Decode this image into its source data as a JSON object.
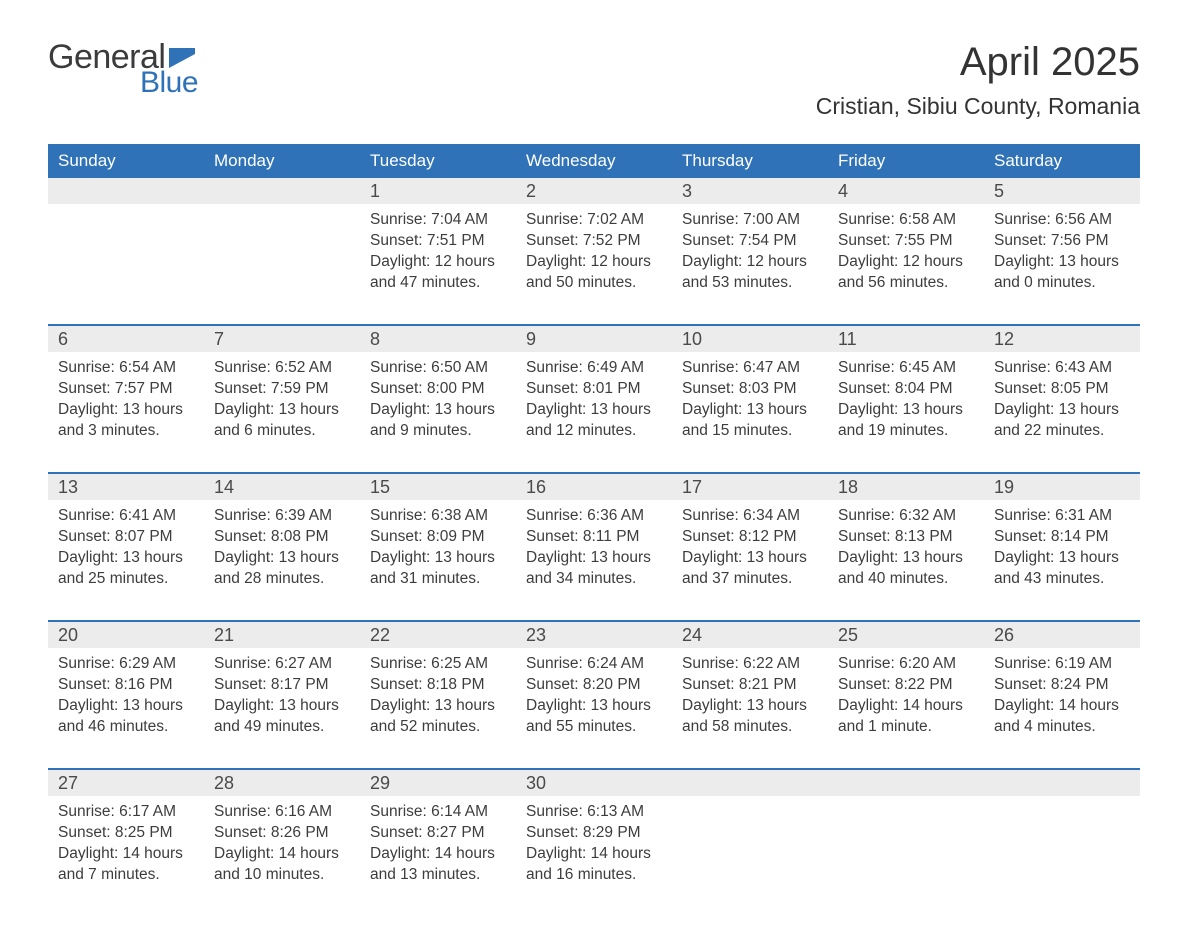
{
  "brand": {
    "line1": "General",
    "line2": "Blue",
    "flag_color": "#2f72b8",
    "text_color": "#3b3b3b",
    "blue_color": "#2f72b8"
  },
  "title": "April 2025",
  "location": "Cristian, Sibiu County, Romania",
  "colors": {
    "header_bg": "#2f72b8",
    "header_text": "#ffffff",
    "daynum_bg": "#ececec",
    "body_text": "#3d3d3d",
    "sep": "#2f72b8",
    "page_bg": "#ffffff"
  },
  "day_names": [
    "Sunday",
    "Monday",
    "Tuesday",
    "Wednesday",
    "Thursday",
    "Friday",
    "Saturday"
  ],
  "weeks": [
    [
      {
        "n": "",
        "sunrise": "",
        "sunset": "",
        "daylight": ""
      },
      {
        "n": "",
        "sunrise": "",
        "sunset": "",
        "daylight": ""
      },
      {
        "n": "1",
        "sunrise": "Sunrise: 7:04 AM",
        "sunset": "Sunset: 7:51 PM",
        "daylight": "Daylight: 12 hours and 47 minutes."
      },
      {
        "n": "2",
        "sunrise": "Sunrise: 7:02 AM",
        "sunset": "Sunset: 7:52 PM",
        "daylight": "Daylight: 12 hours and 50 minutes."
      },
      {
        "n": "3",
        "sunrise": "Sunrise: 7:00 AM",
        "sunset": "Sunset: 7:54 PM",
        "daylight": "Daylight: 12 hours and 53 minutes."
      },
      {
        "n": "4",
        "sunrise": "Sunrise: 6:58 AM",
        "sunset": "Sunset: 7:55 PM",
        "daylight": "Daylight: 12 hours and 56 minutes."
      },
      {
        "n": "5",
        "sunrise": "Sunrise: 6:56 AM",
        "sunset": "Sunset: 7:56 PM",
        "daylight": "Daylight: 13 hours and 0 minutes."
      }
    ],
    [
      {
        "n": "6",
        "sunrise": "Sunrise: 6:54 AM",
        "sunset": "Sunset: 7:57 PM",
        "daylight": "Daylight: 13 hours and 3 minutes."
      },
      {
        "n": "7",
        "sunrise": "Sunrise: 6:52 AM",
        "sunset": "Sunset: 7:59 PM",
        "daylight": "Daylight: 13 hours and 6 minutes."
      },
      {
        "n": "8",
        "sunrise": "Sunrise: 6:50 AM",
        "sunset": "Sunset: 8:00 PM",
        "daylight": "Daylight: 13 hours and 9 minutes."
      },
      {
        "n": "9",
        "sunrise": "Sunrise: 6:49 AM",
        "sunset": "Sunset: 8:01 PM",
        "daylight": "Daylight: 13 hours and 12 minutes."
      },
      {
        "n": "10",
        "sunrise": "Sunrise: 6:47 AM",
        "sunset": "Sunset: 8:03 PM",
        "daylight": "Daylight: 13 hours and 15 minutes."
      },
      {
        "n": "11",
        "sunrise": "Sunrise: 6:45 AM",
        "sunset": "Sunset: 8:04 PM",
        "daylight": "Daylight: 13 hours and 19 minutes."
      },
      {
        "n": "12",
        "sunrise": "Sunrise: 6:43 AM",
        "sunset": "Sunset: 8:05 PM",
        "daylight": "Daylight: 13 hours and 22 minutes."
      }
    ],
    [
      {
        "n": "13",
        "sunrise": "Sunrise: 6:41 AM",
        "sunset": "Sunset: 8:07 PM",
        "daylight": "Daylight: 13 hours and 25 minutes."
      },
      {
        "n": "14",
        "sunrise": "Sunrise: 6:39 AM",
        "sunset": "Sunset: 8:08 PM",
        "daylight": "Daylight: 13 hours and 28 minutes."
      },
      {
        "n": "15",
        "sunrise": "Sunrise: 6:38 AM",
        "sunset": "Sunset: 8:09 PM",
        "daylight": "Daylight: 13 hours and 31 minutes."
      },
      {
        "n": "16",
        "sunrise": "Sunrise: 6:36 AM",
        "sunset": "Sunset: 8:11 PM",
        "daylight": "Daylight: 13 hours and 34 minutes."
      },
      {
        "n": "17",
        "sunrise": "Sunrise: 6:34 AM",
        "sunset": "Sunset: 8:12 PM",
        "daylight": "Daylight: 13 hours and 37 minutes."
      },
      {
        "n": "18",
        "sunrise": "Sunrise: 6:32 AM",
        "sunset": "Sunset: 8:13 PM",
        "daylight": "Daylight: 13 hours and 40 minutes."
      },
      {
        "n": "19",
        "sunrise": "Sunrise: 6:31 AM",
        "sunset": "Sunset: 8:14 PM",
        "daylight": "Daylight: 13 hours and 43 minutes."
      }
    ],
    [
      {
        "n": "20",
        "sunrise": "Sunrise: 6:29 AM",
        "sunset": "Sunset: 8:16 PM",
        "daylight": "Daylight: 13 hours and 46 minutes."
      },
      {
        "n": "21",
        "sunrise": "Sunrise: 6:27 AM",
        "sunset": "Sunset: 8:17 PM",
        "daylight": "Daylight: 13 hours and 49 minutes."
      },
      {
        "n": "22",
        "sunrise": "Sunrise: 6:25 AM",
        "sunset": "Sunset: 8:18 PM",
        "daylight": "Daylight: 13 hours and 52 minutes."
      },
      {
        "n": "23",
        "sunrise": "Sunrise: 6:24 AM",
        "sunset": "Sunset: 8:20 PM",
        "daylight": "Daylight: 13 hours and 55 minutes."
      },
      {
        "n": "24",
        "sunrise": "Sunrise: 6:22 AM",
        "sunset": "Sunset: 8:21 PM",
        "daylight": "Daylight: 13 hours and 58 minutes."
      },
      {
        "n": "25",
        "sunrise": "Sunrise: 6:20 AM",
        "sunset": "Sunset: 8:22 PM",
        "daylight": "Daylight: 14 hours and 1 minute."
      },
      {
        "n": "26",
        "sunrise": "Sunrise: 6:19 AM",
        "sunset": "Sunset: 8:24 PM",
        "daylight": "Daylight: 14 hours and 4 minutes."
      }
    ],
    [
      {
        "n": "27",
        "sunrise": "Sunrise: 6:17 AM",
        "sunset": "Sunset: 8:25 PM",
        "daylight": "Daylight: 14 hours and 7 minutes."
      },
      {
        "n": "28",
        "sunrise": "Sunrise: 6:16 AM",
        "sunset": "Sunset: 8:26 PM",
        "daylight": "Daylight: 14 hours and 10 minutes."
      },
      {
        "n": "29",
        "sunrise": "Sunrise: 6:14 AM",
        "sunset": "Sunset: 8:27 PM",
        "daylight": "Daylight: 14 hours and 13 minutes."
      },
      {
        "n": "30",
        "sunrise": "Sunrise: 6:13 AM",
        "sunset": "Sunset: 8:29 PM",
        "daylight": "Daylight: 14 hours and 16 minutes."
      },
      {
        "n": "",
        "sunrise": "",
        "sunset": "",
        "daylight": ""
      },
      {
        "n": "",
        "sunrise": "",
        "sunset": "",
        "daylight": ""
      },
      {
        "n": "",
        "sunrise": "",
        "sunset": "",
        "daylight": ""
      }
    ]
  ]
}
